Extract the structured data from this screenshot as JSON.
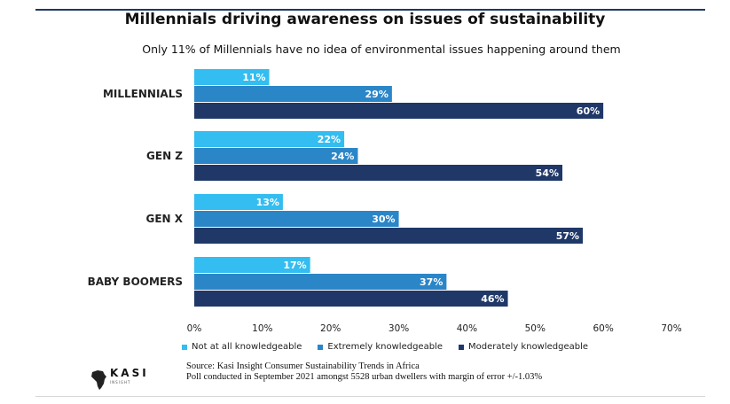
{
  "header": {
    "title": "Millennials driving awareness on issues of sustainability",
    "subtitle": "Only 11% of Millennials  have no idea of  environmental issues happening around them"
  },
  "chart_data": {
    "type": "bar",
    "orientation": "horizontal",
    "categories": [
      "MILLENNIALS",
      "GEN Z",
      "GEN X",
      "BABY BOOMERS"
    ],
    "series": [
      {
        "name": "Not at all knowledgeable",
        "color": "#33bdf0",
        "values": [
          11,
          22,
          13,
          17
        ],
        "labels": [
          "11%",
          "22%",
          "13%",
          "17%"
        ]
      },
      {
        "name": "Extremely knowledgeable",
        "color": "#2b86c8",
        "values": [
          29,
          24,
          30,
          37
        ],
        "labels": [
          "29%",
          "24%",
          "30%",
          "37%"
        ]
      },
      {
        "name": "Moderately knowledgeable",
        "color": "#1f3868",
        "values": [
          60,
          54,
          57,
          46
        ],
        "labels": [
          "60%",
          "54%",
          "57%",
          "46%"
        ]
      }
    ],
    "xlim": [
      0,
      70
    ],
    "ticks": [
      0,
      10,
      20,
      30,
      40,
      50,
      60,
      70
    ],
    "tick_labels": [
      "0%",
      "10%",
      "20%",
      "30%",
      "40%",
      "50%",
      "60%",
      "70%"
    ],
    "legend_position": "bottom",
    "grid": false
  },
  "logo": {
    "name": "KASI",
    "tagline": "INSIGHT"
  },
  "footer": {
    "source": "Source: Kasi Insight Consumer Sustainability Trends in Africa",
    "note": "Poll conducted in September 2021 amongst 5528 urban dwellers with margin of error +/-1.03%"
  }
}
